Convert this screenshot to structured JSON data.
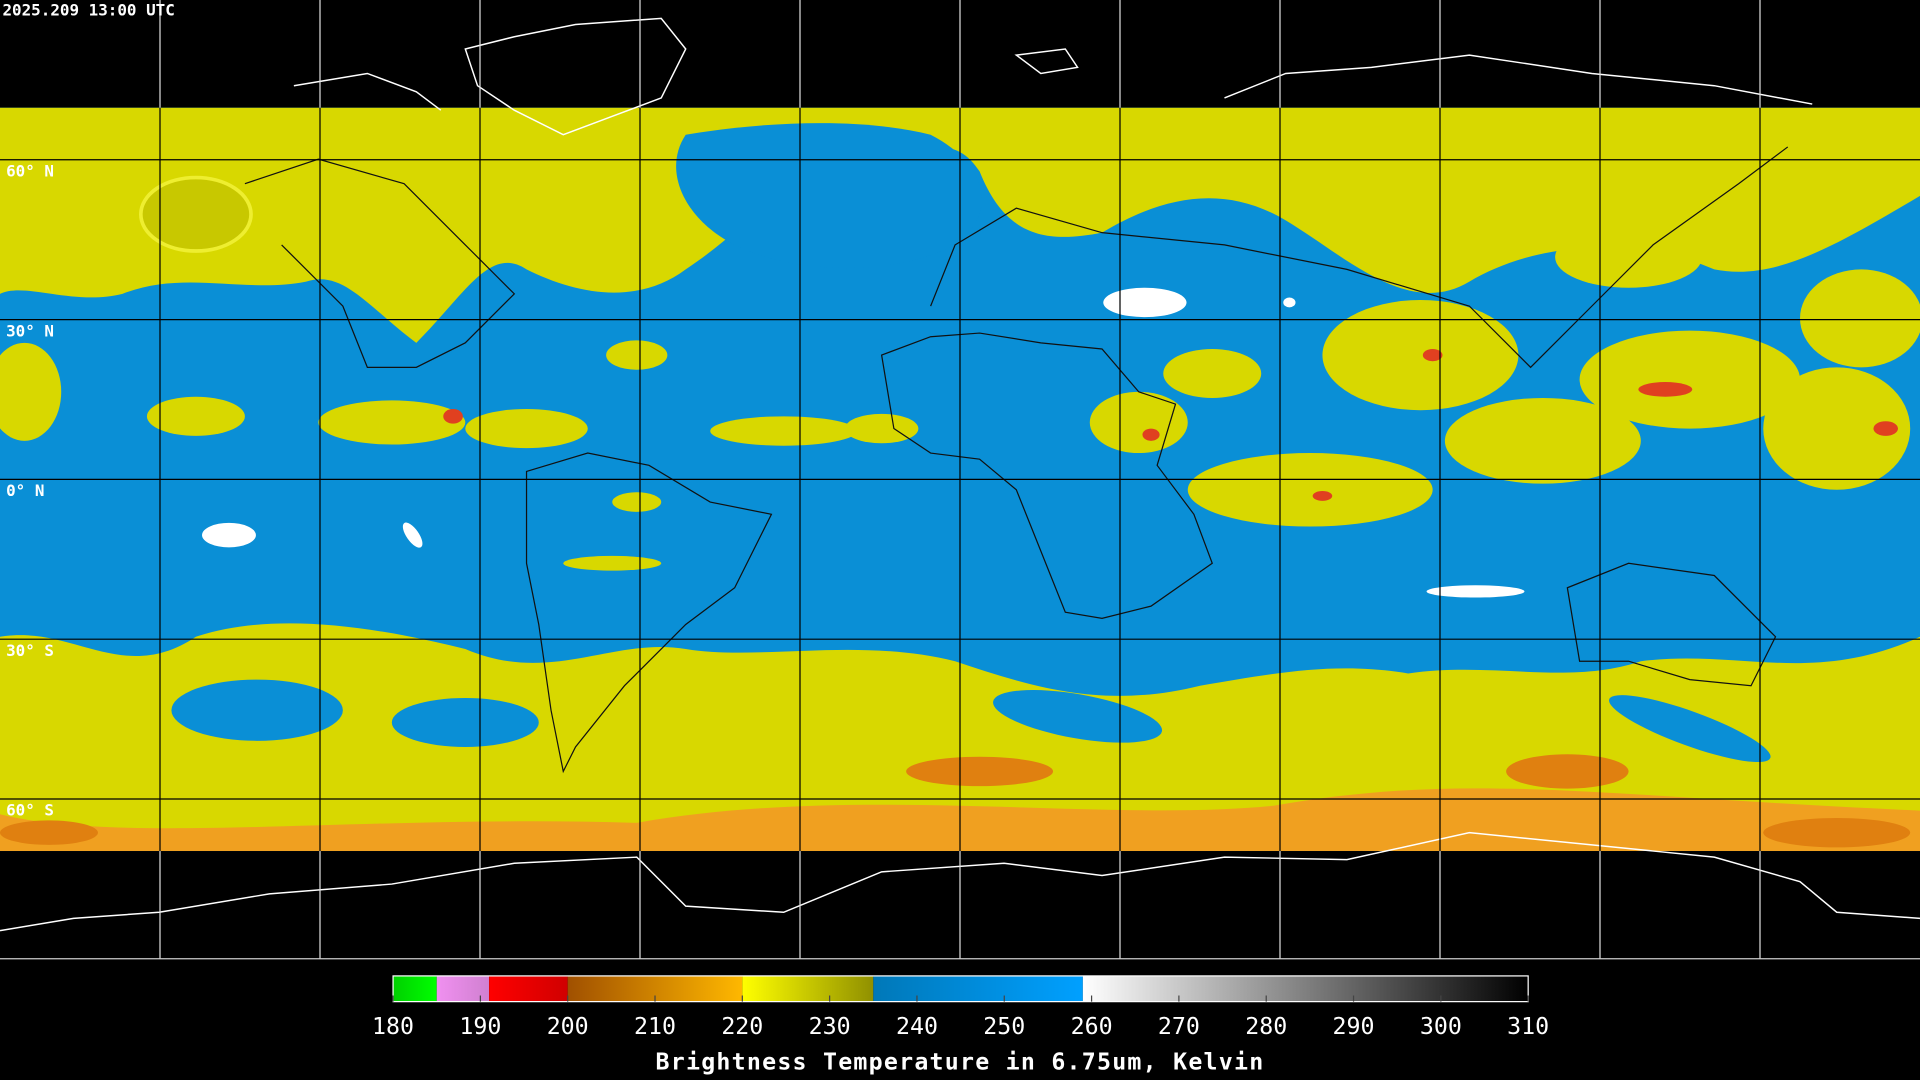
{
  "timestamp": "2025.209 13:00 UTC",
  "map": {
    "ylim": [
      90,
      -90
    ],
    "latitude_lines": [
      {
        "value": 60,
        "label": "60° N"
      },
      {
        "value": 30,
        "label": "30° N"
      },
      {
        "value": 0,
        "label": "0° N"
      },
      {
        "value": -30,
        "label": "30° S"
      },
      {
        "value": -60,
        "label": "60° S"
      }
    ]
  },
  "colorbar": {
    "range": [
      180,
      310
    ],
    "ticks": [
      180,
      190,
      200,
      210,
      220,
      230,
      240,
      250,
      260,
      270,
      280,
      290,
      300,
      310
    ],
    "label": "Brightness Temperature in 6.75um, Kelvin",
    "segments": [
      {
        "range": [
          180,
          185
        ],
        "colors": [
          "#00d000",
          "#00ff00"
        ]
      },
      {
        "range": [
          185,
          191
        ],
        "colors": [
          "#f090f0",
          "#d080d0"
        ]
      },
      {
        "range": [
          191,
          200
        ],
        "colors": [
          "#ff0000",
          "#d00000"
        ]
      },
      {
        "range": [
          200,
          220
        ],
        "colors": [
          "#a05000",
          "#ffb800"
        ]
      },
      {
        "range": [
          220,
          235
        ],
        "colors": [
          "#ffff00",
          "#909000"
        ]
      },
      {
        "range": [
          235,
          259
        ],
        "colors": [
          "#0078b8",
          "#00a0ff"
        ]
      },
      {
        "range": [
          259,
          310
        ],
        "colors": [
          "#ffffff",
          "#000000"
        ]
      }
    ]
  }
}
